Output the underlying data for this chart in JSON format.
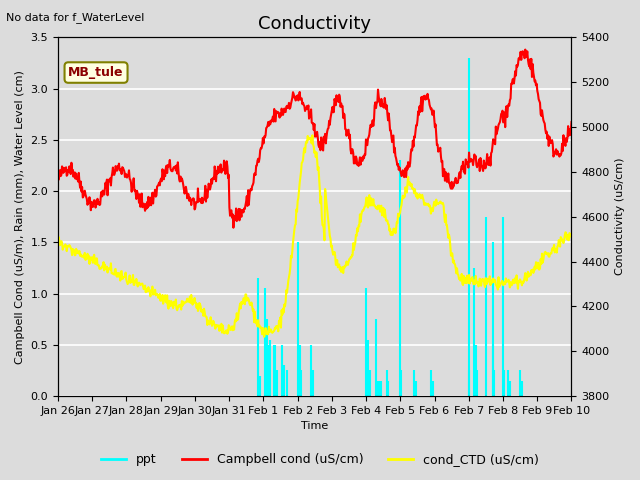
{
  "title": "Conductivity",
  "top_left_text": "No data for f_WaterLevel",
  "station_label": "MB_tule",
  "ylabel_left": "Campbell Cond (uS/m), Rain (mm), Water Level (cm)",
  "ylabel_right": "Conductivity (uS/cm)",
  "xlabel": "Time",
  "ylim_left": [
    0.0,
    3.5
  ],
  "ylim_right": [
    3800,
    5400
  ],
  "bg_color": "#dcdcdc",
  "grid_color": "white",
  "xtick_labels": [
    "Jan 26",
    "Jan 27",
    "Jan 28",
    "Jan 29",
    "Jan 30",
    "Jan 31",
    "Feb 1",
    "Feb 2",
    "Feb 3",
    "Feb 4",
    "Feb 5",
    "Feb 6",
    "Feb 7",
    "Feb 8",
    "Feb 9",
    "Feb 10"
  ],
  "legend_entries": [
    "ppt",
    "Campbell cond (uS/cm)",
    "cond_CTD (uS/cm)"
  ],
  "ppt_color": "cyan",
  "campbell_color": "red",
  "ctd_color": "yellow",
  "title_fontsize": 13,
  "label_fontsize": 8,
  "tick_fontsize": 8
}
